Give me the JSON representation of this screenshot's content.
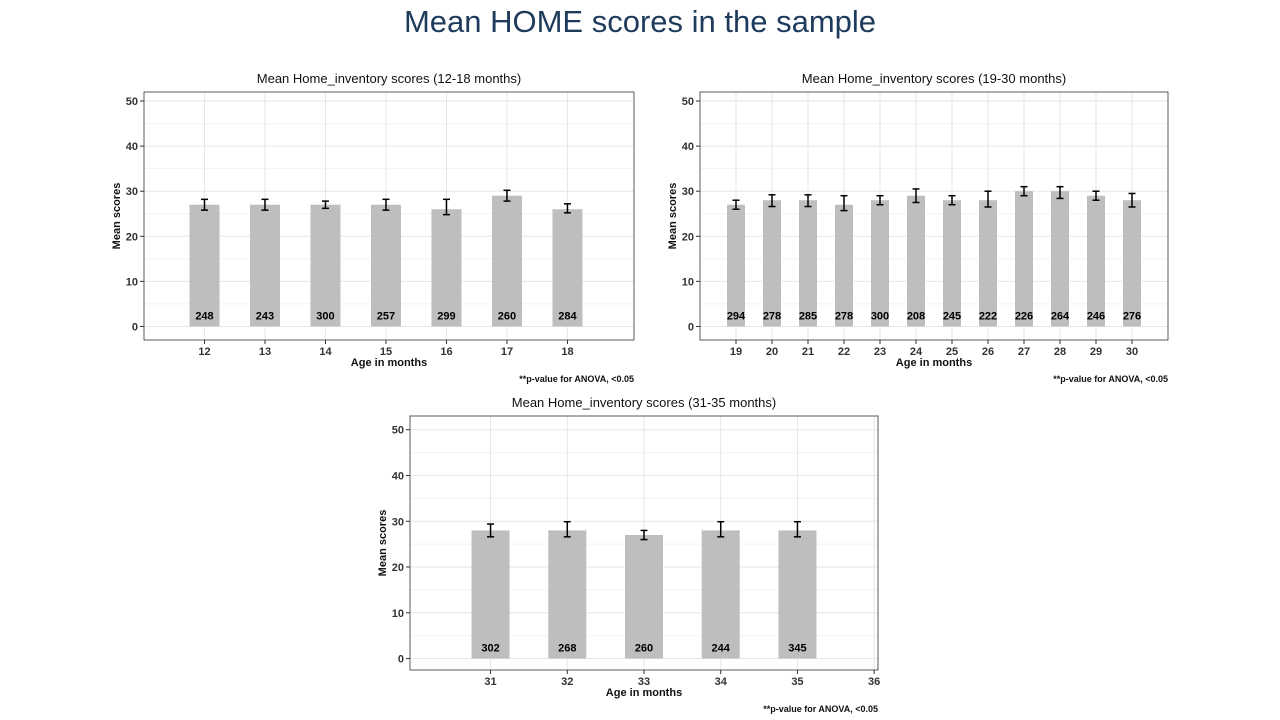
{
  "slide": {
    "title": "Mean HOME scores in the sample"
  },
  "chart_data": [
    {
      "type": "bar",
      "title": "Mean Home_inventory scores (12-18 months)",
      "xlabel": "Age in months",
      "ylabel": "Mean scores",
      "ylim": [
        -3,
        52
      ],
      "yticks": [
        0,
        10,
        20,
        30,
        40,
        50
      ],
      "xlim": [
        11,
        19.1
      ],
      "grid": true,
      "categories": [
        "12",
        "13",
        "14",
        "15",
        "16",
        "17",
        "18"
      ],
      "extra_xticks": [],
      "values": [
        27,
        27,
        27,
        27,
        26,
        29,
        26
      ],
      "error_low": [
        25.8,
        25.8,
        26.2,
        25.8,
        24.8,
        27.8,
        25.2
      ],
      "error_high": [
        28.2,
        28.2,
        27.8,
        28.2,
        28.2,
        30.2,
        27.2
      ],
      "bar_labels": [
        "248",
        "243",
        "300",
        "257",
        "299",
        "260",
        "284"
      ],
      "note": "**p-value  for ANOVA,  <0.05",
      "bar_color": "#bebebe"
    },
    {
      "type": "bar",
      "title": "Mean Home_inventory scores (19-30 months)",
      "xlabel": "Age in months",
      "ylabel": "Mean scores",
      "ylim": [
        -3,
        52
      ],
      "yticks": [
        0,
        10,
        20,
        30,
        40,
        50
      ],
      "xlim": [
        18,
        31
      ],
      "grid": true,
      "categories": [
        "19",
        "20",
        "21",
        "22",
        "23",
        "24",
        "25",
        "26",
        "27",
        "28",
        "29",
        "30"
      ],
      "extra_xticks": [],
      "values": [
        27,
        28,
        28,
        27,
        28,
        29,
        28,
        28,
        30,
        30,
        29,
        28
      ],
      "error_low": [
        26,
        26.6,
        26.6,
        25.7,
        27,
        27.5,
        27,
        26.5,
        29,
        28.4,
        28,
        26.5
      ],
      "error_high": [
        28,
        29.2,
        29.2,
        29,
        29,
        30.5,
        29,
        30,
        31,
        31,
        30,
        29.5
      ],
      "bar_labels": [
        "294",
        "278",
        "285",
        "278",
        "300",
        "208",
        "245",
        "222",
        "226",
        "264",
        "246",
        "276"
      ],
      "note": "**p-value  for ANOVA,  <0.05",
      "bar_color": "#bebebe"
    },
    {
      "type": "bar",
      "title": "Mean Home_inventory scores (31-35 months)",
      "xlabel": "Age in months",
      "ylabel": "Mean scores",
      "ylim": [
        -2.5,
        53
      ],
      "yticks": [
        0,
        10,
        20,
        30,
        40,
        50
      ],
      "xlim": [
        29.95,
        36.05
      ],
      "grid": true,
      "categories": [
        "31",
        "32",
        "33",
        "34",
        "35"
      ],
      "extra_xticks": [
        "36"
      ],
      "values": [
        28,
        28,
        27,
        28,
        28
      ],
      "error_low": [
        26.6,
        26.6,
        26,
        26.6,
        26.6
      ],
      "error_high": [
        29.4,
        29.9,
        28,
        29.9,
        29.9
      ],
      "bar_labels": [
        "302",
        "268",
        "260",
        "244",
        "345"
      ],
      "note": "**p-value  for ANOVA,  <0.05",
      "bar_color": "#bebebe"
    }
  ]
}
